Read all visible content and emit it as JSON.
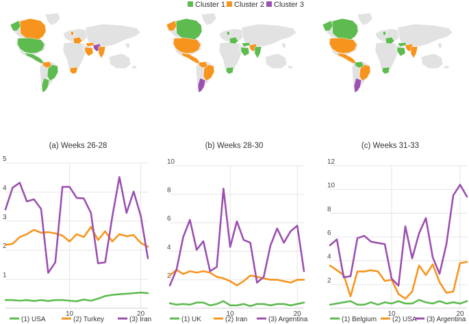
{
  "colors": {
    "cluster1": "#5dbb4f",
    "cluster2": "#f7941d",
    "cluster3": "#9b4fb0",
    "land": "#e2e2e2",
    "grid": "#e4e4e4",
    "axis_text": "#444444"
  },
  "legend": [
    {
      "label": "Cluster 1",
      "color": "#5dbb4f"
    },
    {
      "label": "Cluster 2",
      "color": "#f7941d"
    },
    {
      "label": "Cluster 3",
      "color": "#9b4fb0"
    }
  ],
  "maps": [
    {
      "caption": "(a) Weeks 26-28",
      "regions": {
        "usa": "cluster1",
        "canada": "cluster2",
        "alaska": "cluster1",
        "mexico": "cluster1",
        "brazil": "cluster1",
        "colombia": "cluster2",
        "argentina": "cluster1",
        "uk": "cluster2",
        "western_europe": "cluster2",
        "turkey": "cluster2",
        "iran": "cluster3",
        "india": "cluster2",
        "arabia": "cluster2",
        "south_africa": "cluster2"
      }
    },
    {
      "caption": "(b) Weeks 28-30",
      "regions": {
        "usa": "cluster2",
        "canada": "cluster1",
        "alaska": "cluster2",
        "mexico": "cluster2",
        "brazil": "cluster2",
        "colombia": "cluster2",
        "argentina": "cluster3",
        "uk": "cluster1",
        "western_europe": "cluster1",
        "turkey": "cluster1",
        "iran": "cluster2",
        "india": "cluster1",
        "arabia": "cluster1",
        "south_africa": "cluster1"
      }
    },
    {
      "caption": "(c) Weeks 31-33",
      "regions": {
        "usa": "cluster2",
        "canada": "cluster1",
        "alaska": "cluster1",
        "mexico": "cluster2",
        "brazil": "cluster2",
        "colombia": "cluster1",
        "argentina": "cluster3",
        "uk": "cluster1",
        "western_europe": "cluster1",
        "turkey": "cluster1",
        "iran": "cluster2",
        "india": "cluster2",
        "arabia": "cluster1",
        "south_africa": "cluster1"
      }
    }
  ],
  "chart_data": [
    {
      "type": "line",
      "title": "",
      "xlabel": "",
      "ylabel": "",
      "xlim": [
        1,
        21
      ],
      "ylim": [
        0,
        5
      ],
      "yticks": [
        1,
        2,
        3,
        4,
        5
      ],
      "xticks": [
        10,
        20
      ],
      "x": [
        1,
        2,
        3,
        4,
        5,
        6,
        7,
        8,
        9,
        10,
        11,
        12,
        13,
        14,
        15,
        16,
        17,
        18,
        19,
        20,
        21
      ],
      "series": [
        {
          "name": "(1) USA",
          "color": "#5dbb4f",
          "values": [
            0.28,
            0.28,
            0.26,
            0.28,
            0.25,
            0.28,
            0.25,
            0.28,
            0.28,
            0.26,
            0.24,
            0.3,
            0.26,
            0.33,
            0.42,
            0.46,
            0.48,
            0.5,
            0.52,
            0.54,
            0.52
          ]
        },
        {
          "name": "(2) Turkey",
          "color": "#f7941d",
          "values": [
            2.18,
            2.22,
            2.45,
            2.55,
            2.7,
            2.6,
            2.62,
            2.58,
            2.5,
            2.3,
            2.55,
            2.45,
            2.8,
            2.35,
            2.65,
            2.3,
            2.55,
            2.48,
            2.52,
            2.25,
            2.12
          ]
        },
        {
          "name": "(3) Iran",
          "color": "#9b4fb0",
          "values": [
            3.4,
            4.15,
            4.32,
            3.68,
            3.75,
            3.42,
            1.22,
            1.58,
            4.18,
            4.18,
            3.8,
            3.78,
            3.28,
            1.55,
            1.58,
            3.15,
            4.52,
            3.28,
            4.02,
            3.18,
            1.72
          ]
        }
      ]
    },
    {
      "type": "line",
      "title": "",
      "xlabel": "",
      "ylabel": "",
      "xlim": [
        1,
        21
      ],
      "ylim": [
        0,
        10
      ],
      "yticks": [
        2,
        4,
        6,
        8,
        10
      ],
      "xticks": [
        10,
        20
      ],
      "x": [
        1,
        2,
        3,
        4,
        5,
        6,
        7,
        8,
        9,
        10,
        11,
        12,
        13,
        14,
        15,
        16,
        17,
        18,
        19,
        20,
        21
      ],
      "series": [
        {
          "name": "(1) UK",
          "color": "#5dbb4f",
          "values": [
            0.35,
            0.25,
            0.3,
            0.25,
            0.4,
            0.4,
            0.2,
            0.3,
            0.5,
            0.2,
            0.2,
            0.3,
            0.15,
            0.3,
            0.3,
            0.2,
            0.3,
            0.3,
            0.2,
            0.3,
            0.4
          ]
        },
        {
          "name": "(2) Iran",
          "color": "#f7941d",
          "values": [
            2.3,
            2.7,
            2.4,
            2.6,
            2.5,
            2.6,
            2.5,
            2.2,
            2.1,
            1.9,
            1.6,
            1.9,
            2.3,
            2.2,
            2.1,
            2.0,
            2.0,
            1.9,
            1.8,
            2.0,
            2.0
          ]
        },
        {
          "name": "(3) Argentina",
          "color": "#9b4fb0",
          "values": [
            1.6,
            2.7,
            5.0,
            6.2,
            4.1,
            4.7,
            2.6,
            2.9,
            8.4,
            4.3,
            6.1,
            4.8,
            4.6,
            1.8,
            2.2,
            4.4,
            5.6,
            4.6,
            5.4,
            5.8,
            2.6
          ]
        }
      ]
    },
    {
      "type": "line",
      "title": "",
      "xlabel": "",
      "ylabel": "",
      "xlim": [
        1,
        21
      ],
      "ylim": [
        0,
        12
      ],
      "yticks": [
        2,
        4,
        6,
        8,
        10,
        12
      ],
      "xticks": [
        10,
        20
      ],
      "x": [
        1,
        2,
        3,
        4,
        5,
        6,
        7,
        8,
        9,
        10,
        11,
        12,
        13,
        14,
        15,
        16,
        17,
        18,
        19,
        20,
        21
      ],
      "series": [
        {
          "name": "(1) Belgium",
          "color": "#5dbb4f",
          "values": [
            0.3,
            0.4,
            0.5,
            0.6,
            0.3,
            0.3,
            0.5,
            0.3,
            0.5,
            0.4,
            0.6,
            0.4,
            0.4,
            0.7,
            0.5,
            0.4,
            0.6,
            0.4,
            0.5,
            0.4,
            0.6
          ]
        },
        {
          "name": "(2) USA",
          "color": "#f7941d",
          "values": [
            3.6,
            3.2,
            2.8,
            1.0,
            3.1,
            3.1,
            3.2,
            3.1,
            2.3,
            2.4,
            1.2,
            0.8,
            1.4,
            3.6,
            2.8,
            3.7,
            2.2,
            1.3,
            1.4,
            3.8,
            3.9
          ]
        },
        {
          "name": "(3) Argentina",
          "color": "#9b4fb0",
          "values": [
            5.3,
            5.8,
            2.6,
            2.7,
            5.9,
            6.1,
            5.6,
            5.5,
            5.4,
            2.5,
            1.9,
            6.9,
            4.2,
            6.3,
            7.6,
            4.3,
            2.9,
            5.4,
            9.5,
            10.4,
            9.4
          ]
        }
      ]
    }
  ]
}
